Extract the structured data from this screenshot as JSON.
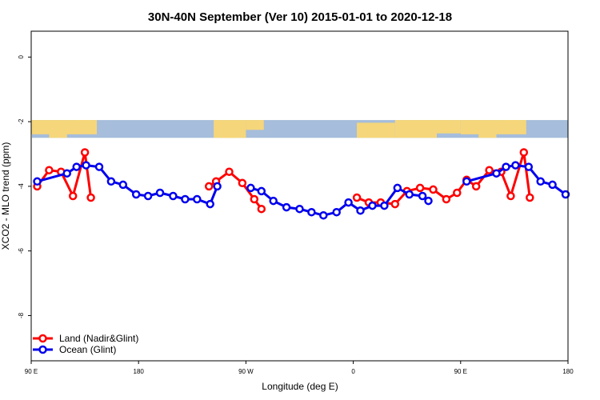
{
  "chart_data": {
    "type": "line",
    "title": "30N-40N September (Ver 10)   2015-01-01 to 2020-12-18",
    "xlabel": "Longitude (deg E)",
    "ylabel": "XCO2 - MLO trend (ppm)",
    "xlim": [
      90,
      450
    ],
    "ylim": [
      -9.4,
      0.8
    ],
    "x_ticks": [
      {
        "value": 90,
        "label": "90 E"
      },
      {
        "value": 180,
        "label": "180"
      },
      {
        "value": 270,
        "label": "90 W"
      },
      {
        "value": 360,
        "label": "0"
      },
      {
        "value": 450,
        "label": "90 E"
      },
      {
        "value": 540,
        "label": "180"
      }
    ],
    "y_ticks": [
      0,
      -2,
      -4,
      -6,
      -8
    ],
    "xlim_display": [
      90,
      540
    ],
    "map_strip": {
      "y_top": -1.95,
      "y_bottom": -2.5,
      "ocean_color": "#a6bddb",
      "land_color": "#f5d67a"
    },
    "legend_position": "bottom-left",
    "series": [
      {
        "name": "Land (Nadir&Glint)",
        "color": "#ff0000",
        "segments": [
          [
            {
              "x": 95,
              "y": -4.0
            },
            {
              "x": 105,
              "y": -3.5
            },
            {
              "x": 115,
              "y": -3.55
            },
            {
              "x": 125,
              "y": -4.3
            },
            {
              "x": 135,
              "y": -2.95
            },
            {
              "x": 140,
              "y": -4.35
            }
          ],
          [
            {
              "x": 239,
              "y": -4.0
            },
            {
              "x": 245,
              "y": -3.85
            },
            {
              "x": 256,
              "y": -3.55
            },
            {
              "x": 267,
              "y": -3.9
            },
            {
              "x": 277,
              "y": -4.4
            },
            {
              "x": 283,
              "y": -4.7
            }
          ],
          [
            {
              "x": 363,
              "y": -4.35
            },
            {
              "x": 373,
              "y": -4.5
            },
            {
              "x": 383,
              "y": -4.5
            },
            {
              "x": 395,
              "y": -4.55
            },
            {
              "x": 405,
              "y": -4.15
            },
            {
              "x": 416,
              "y": -4.05
            },
            {
              "x": 427,
              "y": -4.1
            },
            {
              "x": 438,
              "y": -4.4
            },
            {
              "x": 447,
              "y": -4.2
            },
            {
              "x": 455,
              "y": -3.8
            },
            {
              "x": 463,
              "y": -4.0
            },
            {
              "x": 474,
              "y": -3.5
            },
            {
              "x": 484,
              "y": -3.55
            },
            {
              "x": 492,
              "y": -4.3
            },
            {
              "x": 503,
              "y": -2.95
            },
            {
              "x": 508,
              "y": -4.35
            }
          ]
        ]
      },
      {
        "name": "Ocean (Glint)",
        "color": "#0000ee",
        "segments": [
          [
            {
              "x": 95,
              "y": -3.85
            },
            {
              "x": 120,
              "y": -3.6
            },
            {
              "x": 128,
              "y": -3.4
            },
            {
              "x": 136,
              "y": -3.35
            },
            {
              "x": 147,
              "y": -3.4
            },
            {
              "x": 157,
              "y": -3.85
            },
            {
              "x": 167,
              "y": -3.95
            },
            {
              "x": 178,
              "y": -4.25
            },
            {
              "x": 188,
              "y": -4.3
            },
            {
              "x": 198,
              "y": -4.2
            },
            {
              "x": 209,
              "y": -4.3
            },
            {
              "x": 219,
              "y": -4.4
            },
            {
              "x": 229,
              "y": -4.4
            },
            {
              "x": 240,
              "y": -4.55
            },
            {
              "x": 246,
              "y": -4.0
            }
          ],
          [
            {
              "x": 274,
              "y": -4.05
            },
            {
              "x": 283,
              "y": -4.15
            },
            {
              "x": 293,
              "y": -4.45
            },
            {
              "x": 304,
              "y": -4.65
            },
            {
              "x": 315,
              "y": -4.7
            },
            {
              "x": 325,
              "y": -4.8
            },
            {
              "x": 335,
              "y": -4.9
            },
            {
              "x": 346,
              "y": -4.8
            },
            {
              "x": 356,
              "y": -4.5
            },
            {
              "x": 366,
              "y": -4.75
            },
            {
              "x": 376,
              "y": -4.6
            },
            {
              "x": 386,
              "y": -4.6
            },
            {
              "x": 397,
              "y": -4.05
            },
            {
              "x": 407,
              "y": -4.25
            },
            {
              "x": 418,
              "y": -4.3
            },
            {
              "x": 423,
              "y": -4.45
            }
          ],
          [
            {
              "x": 455,
              "y": -3.85
            },
            {
              "x": 480,
              "y": -3.6
            },
            {
              "x": 488,
              "y": -3.4
            },
            {
              "x": 496,
              "y": -3.35
            },
            {
              "x": 507,
              "y": -3.4
            },
            {
              "x": 517,
              "y": -3.85
            },
            {
              "x": 527,
              "y": -3.95
            },
            {
              "x": 538,
              "y": -4.25
            }
          ]
        ]
      }
    ]
  }
}
